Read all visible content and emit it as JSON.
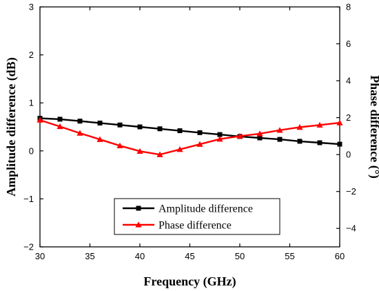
{
  "chart_data": {
    "type": "line",
    "xlabel": "Frequency (GHz)",
    "ylabel_left": "Amplitude difference (dB)",
    "ylabel_right": "Phase difference (°)",
    "xlim": [
      30,
      60
    ],
    "ylim_left": [
      -2,
      3
    ],
    "ylim_right": [
      -5,
      8
    ],
    "x_ticks": [
      "30",
      "35",
      "40",
      "45",
      "50",
      "55",
      "60"
    ],
    "y_left_ticks": [
      "−2",
      "−1",
      "0",
      "1",
      "2",
      "3"
    ],
    "y_right_ticks": [
      "−4",
      "−2",
      "0",
      "2",
      "4",
      "6",
      "8"
    ],
    "legend_position": "lower-center",
    "grid": false,
    "series": [
      {
        "name": "Amplitude difference",
        "axis": "left",
        "color": "#000000",
        "marker": "square",
        "x": [
          30,
          32,
          34,
          36,
          38,
          40,
          42,
          44,
          46,
          48,
          50,
          52,
          54,
          56,
          58,
          60
        ],
        "y": [
          0.68,
          0.66,
          0.62,
          0.58,
          0.54,
          0.5,
          0.46,
          0.42,
          0.38,
          0.34,
          0.3,
          0.27,
          0.24,
          0.2,
          0.17,
          0.14
        ]
      },
      {
        "name": "Phase difference",
        "axis": "right",
        "color": "#ff0000",
        "marker": "triangle",
        "x": [
          30,
          32,
          34,
          36,
          38,
          40,
          42,
          44,
          46,
          48,
          50,
          52,
          54,
          56,
          58,
          60
        ],
        "y": [
          1.87,
          1.52,
          1.16,
          0.82,
          0.48,
          0.18,
          0.0,
          0.28,
          0.56,
          0.84,
          1.0,
          1.13,
          1.32,
          1.48,
          1.6,
          1.72
        ]
      }
    ]
  }
}
